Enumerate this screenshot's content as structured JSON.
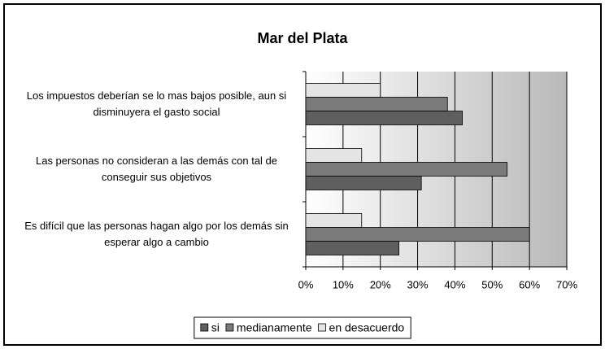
{
  "chart_data": {
    "type": "hbar",
    "title": "Mar del Plata",
    "categories": [
      "Los impuestos deberían se lo mas bajos posible, aun si disminuyera el gasto social",
      "Las personas no consideran a las demás con tal de conseguir sus objetivos",
      "Es difícil que las personas hagan algo por los demás sin esperar algo a cambio"
    ],
    "series": [
      {
        "name": "si",
        "color": "#5f5f5f",
        "values": [
          42,
          31,
          25
        ]
      },
      {
        "name": "medianamente",
        "color": "#7a7a7a",
        "values": [
          38,
          54,
          60
        ]
      },
      {
        "name": "en desacuerdo",
        "color": "#e4e4e4",
        "values": [
          20,
          15,
          15
        ]
      }
    ],
    "xlim": [
      0,
      70
    ],
    "xticks": [
      {
        "value": 0,
        "label": "0%"
      },
      {
        "value": 10,
        "label": "10%"
      },
      {
        "value": 20,
        "label": "20%"
      },
      {
        "value": 30,
        "label": "30%"
      },
      {
        "value": 40,
        "label": "40%"
      },
      {
        "value": 50,
        "label": "50%"
      },
      {
        "value": 60,
        "label": "60%"
      },
      {
        "value": 70,
        "label": "70%"
      }
    ],
    "grid": true,
    "legend": "bottom"
  }
}
